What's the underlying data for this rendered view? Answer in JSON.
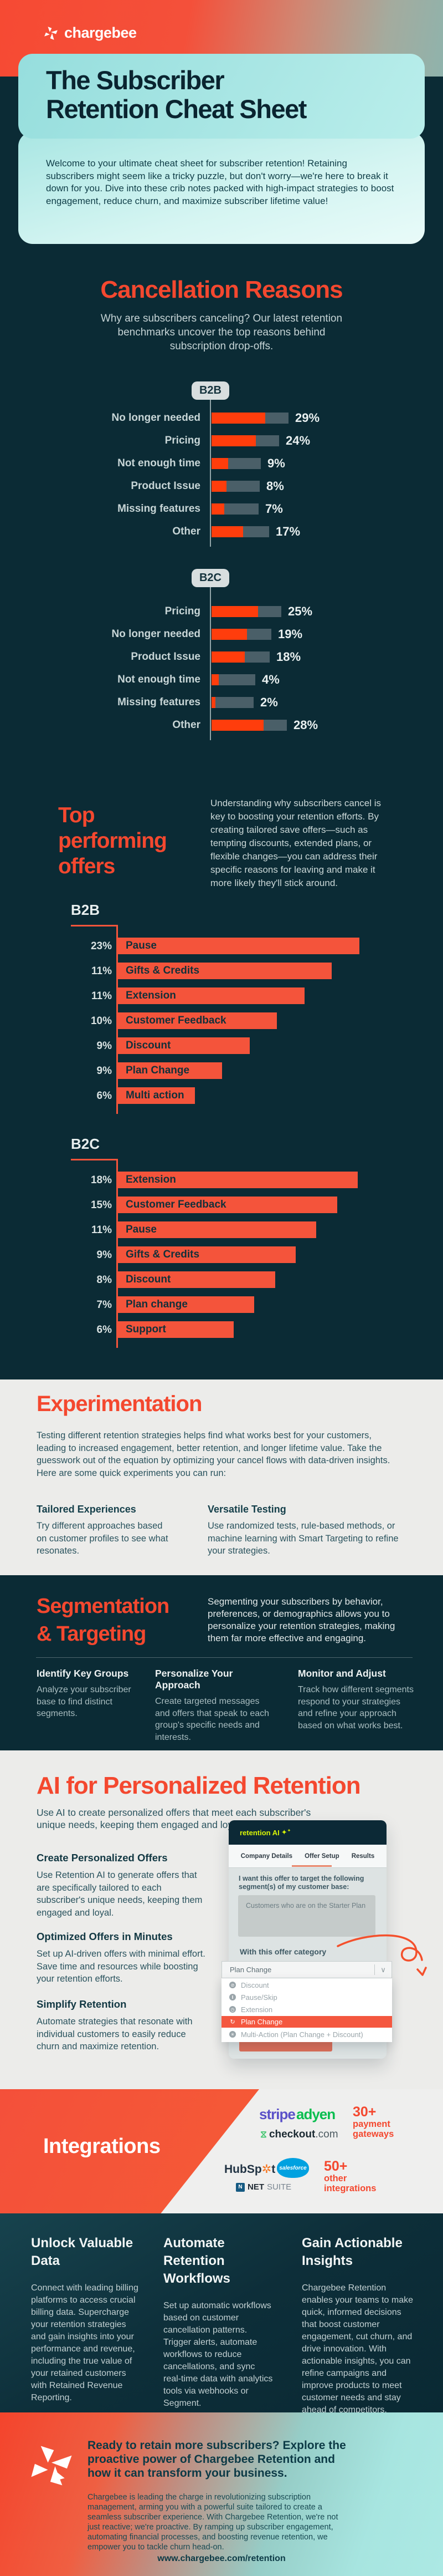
{
  "colors": {
    "accent_orange": "#F4503A",
    "bright_bar_orange": "#FF3D0C",
    "offer_bar_orange": "#F4543B",
    "dark_background": "#0B2B35",
    "teal_card": "#A9E6E4",
    "lime_accent": "#D9F506",
    "track_gray": "#4A5F68"
  },
  "header": {
    "logo_text": "chargebee"
  },
  "hero": {
    "title_line1": "The Subscriber",
    "title_line2": "Retention Cheat Sheet",
    "intro": "Welcome to your ultimate cheat sheet for subscriber retention! Retaining subscribers might seem like a tricky puzzle, but don't worry—we're here to break it down for you.  Dive into these crib notes packed with high-impact strategies to boost engagement, reduce churn, and maximize subscriber lifetime value!"
  },
  "cancellation": {
    "title": "Cancellation Reasons",
    "subtitle": "Why are subscribers canceling? Our latest retention benchmarks uncover the top reasons behind subscription drop-offs."
  },
  "offers": {
    "title_line1": "Top",
    "title_line2": "performing",
    "title_line3": "offers",
    "description": "Understanding why subscribers cancel is key to boosting your retention efforts. By creating tailored save offers—such as tempting discounts, extended plans, or flexible changes—you can address their specific reasons for leaving and make it more likely they'll stick around."
  },
  "chart_data": [
    {
      "type": "bar",
      "group": "cancellation_reasons",
      "title": "B2B",
      "unit": "%",
      "xlim": [
        0,
        30
      ],
      "categories": [
        "No longer needed",
        "Pricing",
        "Not enough time",
        "Product Issue",
        "Missing features",
        "Other"
      ],
      "values": [
        29,
        24,
        9,
        8,
        7,
        17
      ]
    },
    {
      "type": "bar",
      "group": "cancellation_reasons",
      "title": "B2C",
      "unit": "%",
      "xlim": [
        0,
        30
      ],
      "categories": [
        "Pricing",
        "No longer needed",
        "Product Issue",
        "Not enough time",
        "Missing features",
        "Other"
      ],
      "values": [
        25,
        19,
        18,
        4,
        2,
        28
      ]
    },
    {
      "type": "bar",
      "group": "top_performing_offers",
      "title": "B2B",
      "unit": "%",
      "categories": [
        "Pause",
        "Gifts & Credits",
        "Extension",
        "Customer Feedback",
        "Discount",
        "Plan Change",
        "Multi action"
      ],
      "values": [
        23,
        11,
        11,
        10,
        9,
        9,
        6
      ]
    },
    {
      "type": "bar",
      "group": "top_performing_offers",
      "title": "B2C",
      "unit": "%",
      "categories": [
        "Extension",
        "Customer Feedback",
        "Pause",
        "Gifts & Credits",
        "Discount",
        "Plan change",
        "Support"
      ],
      "values": [
        18,
        15,
        11,
        9,
        8,
        7,
        6
      ]
    }
  ],
  "experimentation": {
    "title": "Experimentation",
    "description": "Testing different retention strategies helps find what works best for your customers, leading to increased engagement, better retention, and longer lifetime value. Take the guesswork out of the equation by optimizing your cancel flows with data-driven insights. Here are some quick experiments you can run:",
    "columns": [
      {
        "heading": "Tailored Experiences",
        "body": "Try different approaches based on customer profiles to see what resonates."
      },
      {
        "heading": "Versatile Testing",
        "body": "Use randomized tests, rule-based methods, or machine learning with Smart Targeting to refine your strategies."
      }
    ]
  },
  "segmentation": {
    "title_line1": "Segmentation",
    "title_line2": "& Targeting",
    "description": "Segmenting your subscribers by behavior, preferences, or demographics allows you to personalize your retention strategies, making them far more effective and engaging.",
    "columns": [
      {
        "heading": "Identify Key Groups",
        "body": "Analyze your subscriber base to find distinct segments."
      },
      {
        "heading": "Personalize Your Approach",
        "body": "Create targeted messages and offers that speak to each group's specific needs and interests."
      },
      {
        "heading": "Monitor and Adjust",
        "body": "Track how different segments respond to your strategies and refine your approach based on what works best."
      }
    ]
  },
  "ai": {
    "title": "AI for Personalized Retention",
    "description": "Use AI to create personalized offers that meet each subscriber's unique needs, keeping them engaged and loyal.",
    "blocks": [
      {
        "heading": "Create Personalized Offers",
        "body": "Use Retention AI to generate offers that are specifically tailored to each subscriber's unique needs, keeping them engaged and loyal."
      },
      {
        "heading": "Optimized Offers in Minutes",
        "body": "Set up AI-driven offers with minimal effort. Save time and resources while boosting your retention efforts."
      },
      {
        "heading": "Simplify Retention",
        "body": "Automate strategies that resonate with individual customers to easily reduce churn and maximize retention."
      }
    ],
    "mockup": {
      "app_name": "retention AI",
      "sparkle_icon": "sparkle-icon",
      "tabs": [
        {
          "label": "Company Details"
        },
        {
          "label": "Offer Setup"
        },
        {
          "label": "Results"
        }
      ],
      "active_tab": "Offer Setup",
      "question": "I want this offer to target the following segment(s) of my customer base:",
      "segment_input_value": "Customers who are on the Starter Plan",
      "category_label": "With this offer category",
      "selected_category": "Plan Change",
      "options": [
        {
          "label": "Discount",
          "icon": "discount-icon"
        },
        {
          "label": "Pause/Skip",
          "icon": "pause-icon"
        },
        {
          "label": "Extension",
          "icon": "clock-icon"
        },
        {
          "label": "Plan Change",
          "icon": "refresh-icon",
          "selected": true
        },
        {
          "label": "Multi-Action (Plan Change + Discount)",
          "icon": "multi-action-icon"
        }
      ]
    }
  },
  "integrations": {
    "title": "Integrations",
    "payment": {
      "logos": [
        "stripe",
        "adyen",
        "checkout.com"
      ],
      "count": "30+",
      "count_label": "payment gateways"
    },
    "apps": {
      "logos": [
        "HubSpot",
        "salesforce",
        "NETSUITE"
      ],
      "count": "50+",
      "count_label": "other integrations"
    }
  },
  "features": {
    "columns": [
      {
        "heading": "Unlock Valuable Data",
        "body": "Connect with leading billing platforms to access crucial billing data. Supercharge your retention strategies and gain insights into your performance and revenue, including the true value of your retained customers with Retained Revenue Reporting."
      },
      {
        "heading": "Automate Retention Workflows",
        "body": "Set up automatic workflows based on customer cancellation patterns. Trigger alerts, automate workflows to reduce cancellations, and sync real-time data with analytics tools via webhooks or Segment."
      },
      {
        "heading": "Gain Actionable Insights",
        "body": "Chargebee Retention enables your teams to make quick, informed decisions that boost customer engagement, cut churn, and drive innovation. With actionable insights, you can refine campaigns and improve products to meet customer needs and stay ahead of competitors."
      }
    ]
  },
  "footer": {
    "heading": "Ready to retain more subscribers? Explore the proactive power of Chargebee Retention and how it can transform your business.",
    "body": "Chargebee is leading the charge in revolutionizing subscription management, arming you with a powerful suite tailored to create a seamless subscriber experience. With Chargebee Retention, we're not just reactive; we're proactive. By ramping up subscriber engagement, automating financial processes, and boosting revenue retention, we empower you to tackle churn head-on.",
    "link": "www.chargebee.com/retention"
  }
}
